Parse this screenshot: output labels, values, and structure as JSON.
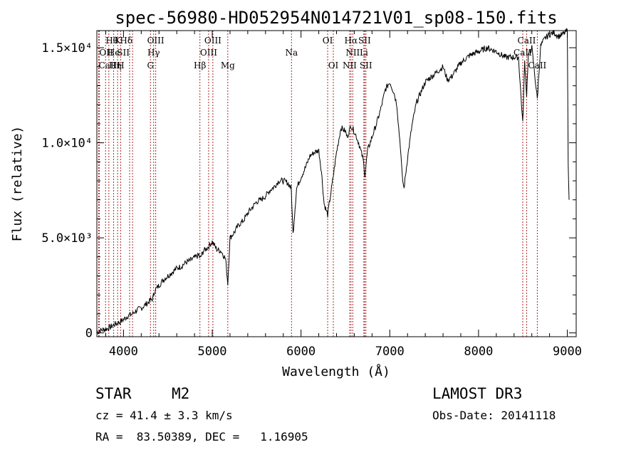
{
  "chart_data": {
    "type": "line",
    "title": "spec-56980-HD052954N014721V01_sp08-150.fits",
    "xlabel": "Wavelength (Å)",
    "ylabel": "Flux (relative)",
    "xlim": [
      3700,
      9100
    ],
    "ylim": [
      -200,
      15900
    ],
    "x_ticks": [
      {
        "value": 4000,
        "label": "4000"
      },
      {
        "value": 5000,
        "label": "5000"
      },
      {
        "value": 6000,
        "label": "6000"
      },
      {
        "value": 7000,
        "label": "7000"
      },
      {
        "value": 8000,
        "label": "8000"
      },
      {
        "value": 9000,
        "label": "9000"
      }
    ],
    "y_ticks": [
      {
        "value": 0,
        "label": "0"
      },
      {
        "value": 5000,
        "label": "5.0×10³"
      },
      {
        "value": 10000,
        "label": "1.0×10⁴"
      },
      {
        "value": 15000,
        "label": "1.5×10⁴"
      }
    ],
    "series": [
      {
        "name": "spectrum",
        "x": [
          3700,
          3750,
          3800,
          3850,
          3900,
          3950,
          4000,
          4050,
          4100,
          4150,
          4200,
          4250,
          4300,
          4330,
          4350,
          4400,
          4450,
          4500,
          4550,
          4600,
          4650,
          4700,
          4750,
          4800,
          4850,
          4861,
          4900,
          4950,
          5000,
          5050,
          5100,
          5150,
          5175,
          5200,
          5250,
          5300,
          5350,
          5400,
          5450,
          5500,
          5550,
          5600,
          5650,
          5700,
          5750,
          5800,
          5850,
          5890,
          5910,
          5950,
          6000,
          6050,
          6100,
          6150,
          6200,
          6230,
          6260,
          6300,
          6350,
          6400,
          6450,
          6500,
          6520,
          6563,
          6600,
          6650,
          6700,
          6720,
          6750,
          6800,
          6850,
          6900,
          6950,
          7000,
          7050,
          7080,
          7100,
          7120,
          7140,
          7160,
          7200,
          7250,
          7300,
          7400,
          7500,
          7600,
          7650,
          7700,
          7800,
          7900,
          8000,
          8100,
          8200,
          8300,
          8400,
          8450,
          8498,
          8520,
          8542,
          8560,
          8600,
          8662,
          8700,
          8750,
          8800,
          8850,
          8900,
          8950,
          9000,
          9010,
          9020
        ],
        "y": [
          50,
          150,
          200,
          300,
          450,
          550,
          700,
          900,
          1000,
          1200,
          1300,
          1500,
          1700,
          1800,
          2200,
          2500,
          2800,
          3000,
          3200,
          3400,
          3500,
          3700,
          3800,
          3950,
          4100,
          3900,
          4300,
          4500,
          4800,
          4400,
          4300,
          3900,
          2600,
          5000,
          5300,
          5700,
          5900,
          6300,
          6600,
          6900,
          7000,
          7200,
          7500,
          7700,
          8000,
          8000,
          7900,
          7600,
          5200,
          7600,
          8200,
          8700,
          9300,
          9500,
          9600,
          8500,
          6800,
          6200,
          7800,
          9500,
          10800,
          10600,
          10300,
          10900,
          10600,
          10000,
          9100,
          8300,
          9600,
          10300,
          11000,
          11800,
          12800,
          13200,
          12600,
          12000,
          10800,
          9800,
          8200,
          7600,
          9200,
          10900,
          12100,
          13200,
          13600,
          14000,
          13300,
          13500,
          14200,
          14600,
          14800,
          15000,
          14800,
          14500,
          14500,
          14500,
          11000,
          14300,
          12500,
          14600,
          15000,
          12300,
          15100,
          15500,
          15700,
          15800,
          15600,
          15700,
          15900,
          9000,
          7000
        ]
      }
    ],
    "lines": [
      {
        "name": "Hθ",
        "wavelength": 3798,
        "row": 1,
        "anchor": "start"
      },
      {
        "name": "OII",
        "wavelength": 3727,
        "row": 2,
        "anchor": "start"
      },
      {
        "name": "CaII",
        "wavelength": 3720,
        "row": 3,
        "anchor": "start"
      },
      {
        "name": "Hη",
        "wavelength": 3835,
        "row": 3,
        "anchor": "start"
      },
      {
        "name": "He",
        "wavelength": 3889,
        "row": 2,
        "anchor": "middle"
      },
      {
        "name": "K",
        "wavelength": 3934,
        "row": 1,
        "anchor": "middle"
      },
      {
        "name": "H",
        "wavelength": 3968,
        "row": 3,
        "anchor": "middle"
      },
      {
        "name": "SII",
        "wavelength": 4069,
        "row": 2,
        "anchor": "end"
      },
      {
        "name": "Hδ",
        "wavelength": 4102,
        "row": 1,
        "anchor": "end"
      },
      {
        "name": "OIII",
        "wavelength": 4363,
        "row": 1,
        "anchor": "middle"
      },
      {
        "name": "Hγ",
        "wavelength": 4340,
        "row": 2,
        "anchor": "middle"
      },
      {
        "name": "G",
        "wavelength": 4304,
        "row": 3,
        "anchor": "middle"
      },
      {
        "name": "Hβ",
        "wavelength": 4861,
        "row": 3,
        "anchor": "middle"
      },
      {
        "name": "OIII",
        "wavelength": 4959,
        "row": 2,
        "anchor": "middle"
      },
      {
        "name": "OIII",
        "wavelength": 5007,
        "row": 1,
        "anchor": "middle"
      },
      {
        "name": "Mg",
        "wavelength": 5175,
        "row": 3,
        "anchor": "middle"
      },
      {
        "name": "Na",
        "wavelength": 5893,
        "row": 2,
        "anchor": "middle"
      },
      {
        "name": "OI",
        "wavelength": 6300,
        "row": 1,
        "anchor": "middle"
      },
      {
        "name": "OI",
        "wavelength": 6364,
        "row": 3,
        "anchor": "middle"
      },
      {
        "name": "NII",
        "wavelength": 6548,
        "row": 3,
        "anchor": "middle"
      },
      {
        "name": "Hα",
        "wavelength": 6563,
        "row": 1,
        "anchor": "middle"
      },
      {
        "name": "NII",
        "wavelength": 6583,
        "row": 2,
        "anchor": "middle"
      },
      {
        "name": "SII",
        "wavelength": 6716,
        "row": 1,
        "anchor": "middle"
      },
      {
        "name": "Li",
        "wavelength": 6708,
        "row": 2,
        "anchor": "middle"
      },
      {
        "name": "SII",
        "wavelength": 6731,
        "row": 3,
        "anchor": "middle"
      },
      {
        "name": "CaII",
        "wavelength": 8498,
        "row": 2,
        "anchor": "middle"
      },
      {
        "name": "CaII",
        "wavelength": 8542,
        "row": 1,
        "anchor": "middle"
      },
      {
        "name": "CaII",
        "wavelength": 8662,
        "row": 3,
        "anchor": "middle"
      }
    ],
    "colors": {
      "line_marker": "#a52a2a",
      "spectrum": "#000000",
      "axes": "#000000"
    }
  },
  "info": {
    "object_class": "STAR",
    "subclass": "M2",
    "survey": "LAMOST DR3",
    "redshift": "cz = 41.4 ± 3.3 km/s",
    "obs_date": "Obs-Date: 20141118",
    "coordinates": "RA =  83.50389, DEC =   1.16905"
  }
}
